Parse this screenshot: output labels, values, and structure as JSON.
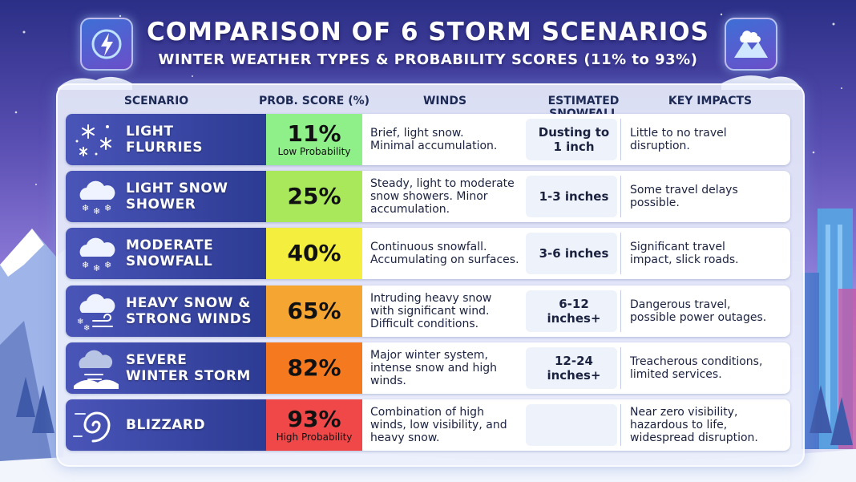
{
  "title": "COMPARISON OF 6 STORM SCENARIOS",
  "subtitle": "WINTER WEATHER TYPES & PROBABILITY SCORES (11% to 93%)",
  "headers": {
    "scenario": "SCENARIO",
    "prob": "PROB. SCORE (%)",
    "winds": "WINDS",
    "snowfall": "ESTIMATED SNOWFALL",
    "impacts": "KEY IMPACTS"
  },
  "colors": {
    "prob": [
      "#8ff08a",
      "#a9e85a",
      "#f4ee3e",
      "#f5a531",
      "#f57a1f",
      "#f04848"
    ]
  },
  "chart_data": {
    "type": "table",
    "columns": [
      "SCENARIO",
      "PROB. SCORE (%)",
      "WINDS",
      "ESTIMATED SNOWFALL",
      "KEY IMPACTS"
    ],
    "rows": [
      {
        "scenario": [
          "LIGHT",
          "FLURRIES"
        ],
        "prob": 11,
        "prob_label": "11%",
        "tag": "Low Probability",
        "winds": [
          "Brief, light snow.",
          "Minimal accumulation."
        ],
        "snowfall": [
          "Dusting to",
          "1 inch"
        ],
        "impacts": [
          "Little to no travel",
          "disruption."
        ],
        "icon": "snowflakes-icon"
      },
      {
        "scenario": [
          "LIGHT SNOW",
          "SHOWER"
        ],
        "prob": 25,
        "prob_label": "25%",
        "tag": "",
        "winds": [
          "Steady, light to moderate",
          "snow showers. Minor",
          "accumulation."
        ],
        "snowfall": [
          "1-3 inches"
        ],
        "impacts": [
          "Some travel delays",
          "possible."
        ],
        "icon": "snow-cloud-icon"
      },
      {
        "scenario": [
          "MODERATE",
          "SNOWFALL"
        ],
        "prob": 40,
        "prob_label": "40%",
        "tag": "",
        "winds": [
          "Continuous snowfall.",
          "Accumulating on surfaces."
        ],
        "snowfall": [
          "3-6 inches"
        ],
        "impacts": [
          "Significant travel",
          "impact, slick roads."
        ],
        "icon": "snow-cloud-icon"
      },
      {
        "scenario": [
          "HEAVY SNOW &",
          "STRONG WINDS"
        ],
        "prob": 65,
        "prob_label": "65%",
        "tag": "",
        "winds": [
          "Intruding heavy snow",
          "with significant wind.",
          "Difficult conditions."
        ],
        "snowfall": [
          "6-12",
          "inches+"
        ],
        "impacts": [
          "Dangerous travel,",
          "possible power outages."
        ],
        "icon": "wind-snow-cloud-icon"
      },
      {
        "scenario": [
          "SEVERE",
          "WINTER STORM"
        ],
        "prob": 82,
        "prob_label": "82%",
        "tag": "",
        "winds": [
          "Major winter system,",
          "intense snow and high",
          "winds."
        ],
        "snowfall": [
          "12-24",
          "inches+"
        ],
        "impacts": [
          "Treacherous conditions,",
          "limited services."
        ],
        "icon": "storm-cloud-icon"
      },
      {
        "scenario": [
          "BLIZZARD"
        ],
        "prob": 93,
        "prob_label": "93%",
        "tag": "High Probability",
        "winds": [
          "Combination of high",
          "winds, low visibility, and",
          "heavy snow."
        ],
        "snowfall": [],
        "impacts": [
          "Near zero visibility,",
          "hazardous to life,",
          "widespread disruption."
        ],
        "icon": "blizzard-swirl-icon"
      }
    ]
  }
}
